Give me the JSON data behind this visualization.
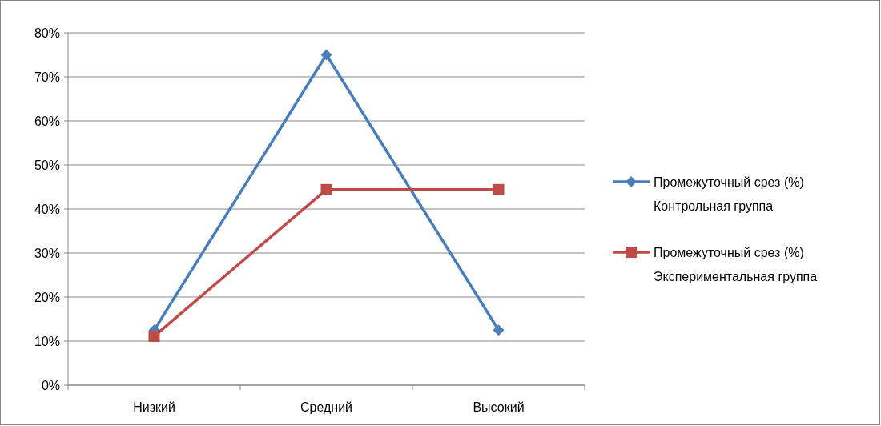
{
  "chart_data": {
    "type": "line",
    "categories": [
      "Низкий",
      "Средний",
      "Высокий"
    ],
    "series": [
      {
        "name": "Промежуточный срез (%) Контрольная группа",
        "color": "#4a7ebb",
        "values": [
          12.5,
          75,
          12.5
        ],
        "marker": "diamond"
      },
      {
        "name": "Промежуточный срез (%) Экспериментальная группа",
        "color": "#be4b48",
        "values": [
          11.1,
          44.4,
          44.4
        ],
        "marker": "square"
      }
    ],
    "ylim": [
      0,
      80
    ],
    "yticks": [
      {
        "value": 0,
        "label": "0%"
      },
      {
        "value": 10,
        "label": "10%"
      },
      {
        "value": 20,
        "label": "20%"
      },
      {
        "value": 30,
        "label": "30%"
      },
      {
        "value": 40,
        "label": "40%"
      },
      {
        "value": 50,
        "label": "50%"
      },
      {
        "value": 60,
        "label": "60%"
      },
      {
        "value": 70,
        "label": "70%"
      },
      {
        "value": 80,
        "label": "80%"
      }
    ],
    "grid": "y",
    "legend": "right"
  }
}
